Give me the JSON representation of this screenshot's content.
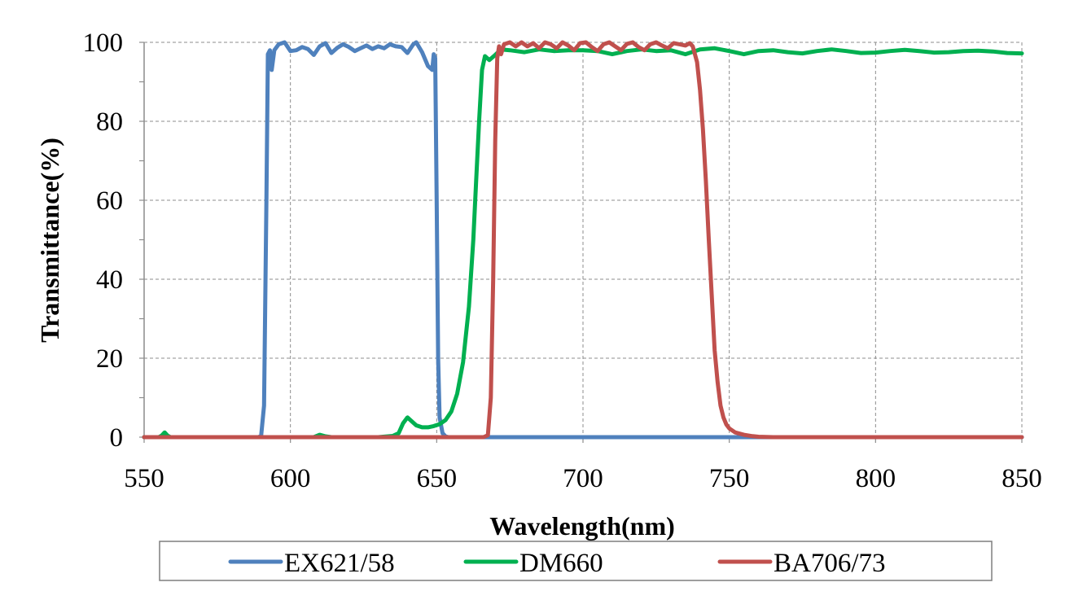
{
  "chart_data": {
    "type": "line",
    "title": "",
    "xlabel": "Wavelength(nm)",
    "ylabel": "Transmittance(%)",
    "xlim": [
      550,
      850
    ],
    "ylim": [
      0,
      100
    ],
    "x_ticks": [
      "550",
      "600",
      "650",
      "700",
      "750",
      "800",
      "850"
    ],
    "y_ticks": [
      "0",
      "20",
      "40",
      "60",
      "80",
      "100"
    ],
    "grid": true,
    "legend_position": "bottom",
    "series": [
      {
        "name": "EX621/58",
        "color": "#4F81BD",
        "points": [
          [
            550,
            0
          ],
          [
            589,
            0
          ],
          [
            590,
            0.3
          ],
          [
            591,
            8
          ],
          [
            591.8,
            60
          ],
          [
            592.3,
            97
          ],
          [
            593,
            98
          ],
          [
            593.6,
            93
          ],
          [
            594.5,
            98
          ],
          [
            596,
            99.5
          ],
          [
            598,
            100
          ],
          [
            600,
            97.8
          ],
          [
            602,
            98
          ],
          [
            604,
            98.8
          ],
          [
            606,
            98.3
          ],
          [
            608,
            96.8
          ],
          [
            610,
            99
          ],
          [
            612,
            99.8
          ],
          [
            614,
            97.3
          ],
          [
            616,
            98.6
          ],
          [
            618,
            99.5
          ],
          [
            620,
            98.8
          ],
          [
            622,
            97.8
          ],
          [
            624,
            98.5
          ],
          [
            626,
            99.2
          ],
          [
            628,
            98.3
          ],
          [
            630,
            99
          ],
          [
            632,
            98.5
          ],
          [
            634,
            99.5
          ],
          [
            636,
            99
          ],
          [
            638,
            98.8
          ],
          [
            640,
            97.3
          ],
          [
            642,
            99.5
          ],
          [
            643,
            100
          ],
          [
            645,
            97.5
          ],
          [
            647,
            94
          ],
          [
            648.5,
            93
          ],
          [
            649,
            97
          ],
          [
            649.5,
            96
          ],
          [
            650,
            60
          ],
          [
            650.5,
            20
          ],
          [
            651,
            5
          ],
          [
            652,
            1
          ],
          [
            653,
            0.2
          ],
          [
            654,
            0
          ],
          [
            850,
            0
          ]
        ]
      },
      {
        "name": "DM660",
        "color": "#00B050",
        "points": [
          [
            550,
            0
          ],
          [
            555,
            0
          ],
          [
            556,
            0.4
          ],
          [
            557,
            1.2
          ],
          [
            558,
            0.4
          ],
          [
            559,
            0
          ],
          [
            608,
            0
          ],
          [
            610,
            0.6
          ],
          [
            612,
            0.2
          ],
          [
            614,
            0
          ],
          [
            630,
            0
          ],
          [
            635,
            0.3
          ],
          [
            637,
            1
          ],
          [
            638.5,
            3.5
          ],
          [
            640,
            5
          ],
          [
            641.5,
            4
          ],
          [
            643,
            3
          ],
          [
            645,
            2.5
          ],
          [
            647,
            2.5
          ],
          [
            649,
            2.8
          ],
          [
            651,
            3.3
          ],
          [
            653,
            4.3
          ],
          [
            655,
            6.5
          ],
          [
            657,
            11
          ],
          [
            659,
            19
          ],
          [
            661,
            33
          ],
          [
            662.5,
            50
          ],
          [
            663.5,
            65
          ],
          [
            664.5,
            80
          ],
          [
            665.5,
            93
          ],
          [
            666.5,
            96.5
          ],
          [
            668,
            95.5
          ],
          [
            670,
            96.8
          ],
          [
            672,
            98.2
          ],
          [
            675,
            98
          ],
          [
            680,
            97.5
          ],
          [
            685,
            98.2
          ],
          [
            690,
            97.8
          ],
          [
            695,
            98
          ],
          [
            700,
            98
          ],
          [
            705,
            97.8
          ],
          [
            710,
            97
          ],
          [
            715,
            97.8
          ],
          [
            720,
            98.2
          ],
          [
            725,
            97.8
          ],
          [
            730,
            98
          ],
          [
            735,
            97
          ],
          [
            740,
            98.2
          ],
          [
            745,
            98.5
          ],
          [
            750,
            97.8
          ],
          [
            755,
            97
          ],
          [
            760,
            97.8
          ],
          [
            765,
            98
          ],
          [
            770,
            97.5
          ],
          [
            775,
            97.2
          ],
          [
            780,
            97.8
          ],
          [
            785,
            98.2
          ],
          [
            790,
            97.8
          ],
          [
            795,
            97.3
          ],
          [
            800,
            97.4
          ],
          [
            805,
            97.8
          ],
          [
            810,
            98.1
          ],
          [
            815,
            97.8
          ],
          [
            820,
            97.4
          ],
          [
            825,
            97.5
          ],
          [
            830,
            97.8
          ],
          [
            835,
            97.9
          ],
          [
            840,
            97.7
          ],
          [
            845,
            97.3
          ],
          [
            850,
            97.2
          ]
        ]
      },
      {
        "name": "BA706/73",
        "color": "#C0504D",
        "points": [
          [
            550,
            0
          ],
          [
            666,
            0
          ],
          [
            667.5,
            0.5
          ],
          [
            668.5,
            10
          ],
          [
            669.3,
            40
          ],
          [
            670,
            75
          ],
          [
            670.7,
            96
          ],
          [
            671.3,
            99
          ],
          [
            672,
            97
          ],
          [
            673,
            99.5
          ],
          [
            675,
            100
          ],
          [
            677,
            99
          ],
          [
            679,
            100
          ],
          [
            681,
            99
          ],
          [
            683,
            99.8
          ],
          [
            685,
            98.5
          ],
          [
            687,
            100
          ],
          [
            689,
            99.5
          ],
          [
            691,
            98.5
          ],
          [
            693,
            100
          ],
          [
            695,
            99.2
          ],
          [
            697,
            98
          ],
          [
            699,
            99.8
          ],
          [
            701,
            100
          ],
          [
            703,
            98.8
          ],
          [
            705,
            97.8
          ],
          [
            707,
            99.5
          ],
          [
            709,
            100
          ],
          [
            711,
            99
          ],
          [
            713,
            98
          ],
          [
            715,
            99.6
          ],
          [
            717,
            100
          ],
          [
            719,
            98.8
          ],
          [
            721,
            98
          ],
          [
            723,
            99.5
          ],
          [
            725,
            100
          ],
          [
            727,
            99.2
          ],
          [
            729,
            98.5
          ],
          [
            731,
            99.8
          ],
          [
            733,
            99.5
          ],
          [
            735,
            99.2
          ],
          [
            736.5,
            99.8
          ],
          [
            737.5,
            99
          ],
          [
            739,
            95
          ],
          [
            740,
            88
          ],
          [
            741,
            78
          ],
          [
            742,
            65
          ],
          [
            743,
            50
          ],
          [
            744,
            36
          ],
          [
            745,
            22
          ],
          [
            746,
            14
          ],
          [
            747,
            8
          ],
          [
            748,
            5
          ],
          [
            749,
            3.2
          ],
          [
            750,
            2.2
          ],
          [
            752,
            1.2
          ],
          [
            755,
            0.6
          ],
          [
            758,
            0.25
          ],
          [
            760,
            0.1
          ],
          [
            765,
            0
          ],
          [
            850,
            0
          ]
        ]
      }
    ]
  }
}
